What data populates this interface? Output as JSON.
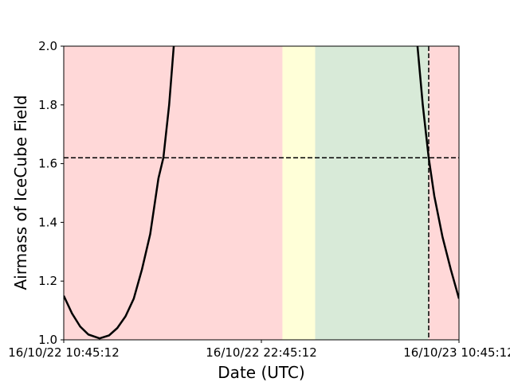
{
  "chart_data": {
    "type": "line",
    "xlabel": "Date (UTC)",
    "ylabel": "Airmass of IceCube Field",
    "x": [
      0,
      0.5,
      1.0,
      1.5,
      2.18,
      2.75,
      3.25,
      3.75,
      4.25,
      4.75,
      5.25,
      5.75,
      6.05,
      6.4,
      6.68,
      14,
      21.48,
      21.8,
      22.16,
      22.5,
      23.0,
      23.5,
      24
    ],
    "series": [
      {
        "name": "Airmass",
        "color": "#000000",
        "values": [
          1.15,
          1.09,
          1.045,
          1.018,
          1.005,
          1.015,
          1.04,
          1.08,
          1.14,
          1.24,
          1.36,
          1.55,
          1.62,
          1.8,
          2.0,
          null,
          2.0,
          1.8,
          1.62,
          1.49,
          1.35,
          1.24,
          1.14
        ]
      }
    ],
    "shading": [
      {
        "start": 0,
        "end": 13.3,
        "color": "#ffd8d8"
      },
      {
        "start": 13.3,
        "end": 15.29,
        "color": "#ffffd8"
      },
      {
        "start": 15.29,
        "end": 22.16,
        "color": "#d8ead8"
      },
      {
        "start": 22.16,
        "end": 24,
        "color": "#ffd8d8"
      }
    ],
    "hline": 1.62,
    "vline": 22.16,
    "xlim": [
      0,
      24
    ],
    "xticks": [
      {
        "value": 0,
        "label": "16/10/22 10:45:12"
      },
      {
        "value": 12,
        "label": "16/10/22 22:45:12"
      },
      {
        "value": 24,
        "label": "16/10/23 10:45:12"
      }
    ],
    "ylim": [
      1,
      2
    ],
    "yticks": [
      {
        "value": 1,
        "label": "1.0"
      },
      1.2,
      1.4,
      1.6,
      1.8,
      {
        "value": 2,
        "label": "2.0"
      }
    ]
  }
}
